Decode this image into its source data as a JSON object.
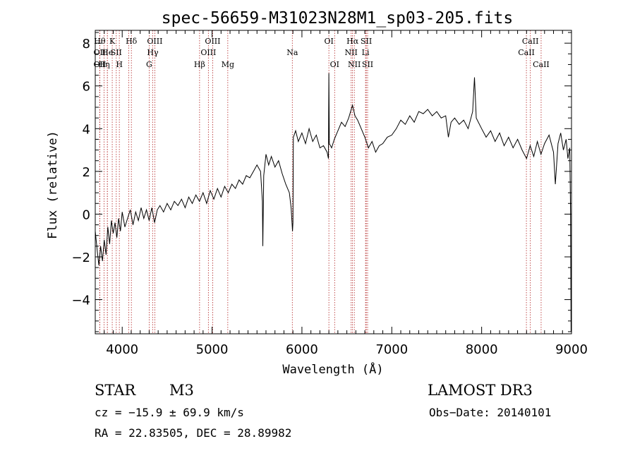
{
  "chart_data": {
    "type": "line",
    "title": "spec-56659-M31023N28M1_sp03-205.fits",
    "xlabel": "Wavelength (Å)",
    "ylabel": "Flux (relative)",
    "xlim": [
      3700,
      9000
    ],
    "ylim": [
      -5.6,
      8.6
    ],
    "x_ticks": [
      4000,
      5000,
      6000,
      7000,
      8000,
      9000
    ],
    "y_ticks": [
      -4,
      -2,
      0,
      2,
      4,
      6,
      8
    ],
    "x_tick_labels": [
      "4000",
      "5000",
      "6000",
      "7000",
      "8000",
      "9000"
    ],
    "y_tick_labels": [
      "−4",
      "−2",
      "0",
      "2",
      "4",
      "6",
      "8"
    ],
    "grid": false,
    "line_color": "#000000",
    "marker_color": "#b22222",
    "series_points": [
      [
        3700,
        -0.8
      ],
      [
        3720,
        -1.6
      ],
      [
        3740,
        -2.4
      ],
      [
        3760,
        -1.5
      ],
      [
        3780,
        -2.2
      ],
      [
        3800,
        -1.2
      ],
      [
        3820,
        -1.9
      ],
      [
        3840,
        -0.6
      ],
      [
        3860,
        -1.4
      ],
      [
        3880,
        -0.3
      ],
      [
        3900,
        -0.9
      ],
      [
        3920,
        -0.4
      ],
      [
        3940,
        -1.1
      ],
      [
        3960,
        -0.2
      ],
      [
        3980,
        -0.8
      ],
      [
        4000,
        0.1
      ],
      [
        4030,
        -0.6
      ],
      [
        4060,
        -0.2
      ],
      [
        4090,
        0.2
      ],
      [
        4120,
        -0.5
      ],
      [
        4150,
        0.1
      ],
      [
        4180,
        -0.3
      ],
      [
        4210,
        0.3
      ],
      [
        4240,
        -0.2
      ],
      [
        4270,
        0.2
      ],
      [
        4300,
        -0.3
      ],
      [
        4330,
        0.3
      ],
      [
        4360,
        -0.4
      ],
      [
        4390,
        0.2
      ],
      [
        4420,
        0.4
      ],
      [
        4460,
        0.1
      ],
      [
        4500,
        0.5
      ],
      [
        4540,
        0.2
      ],
      [
        4580,
        0.6
      ],
      [
        4620,
        0.4
      ],
      [
        4660,
        0.7
      ],
      [
        4700,
        0.3
      ],
      [
        4740,
        0.8
      ],
      [
        4780,
        0.5
      ],
      [
        4820,
        0.9
      ],
      [
        4860,
        0.6
      ],
      [
        4900,
        1.0
      ],
      [
        4940,
        0.5
      ],
      [
        4980,
        1.1
      ],
      [
        5020,
        0.7
      ],
      [
        5060,
        1.2
      ],
      [
        5100,
        0.8
      ],
      [
        5140,
        1.3
      ],
      [
        5180,
        1.0
      ],
      [
        5220,
        1.4
      ],
      [
        5260,
        1.2
      ],
      [
        5300,
        1.6
      ],
      [
        5340,
        1.4
      ],
      [
        5380,
        1.8
      ],
      [
        5420,
        1.7
      ],
      [
        5460,
        2.0
      ],
      [
        5500,
        2.3
      ],
      [
        5540,
        2.0
      ],
      [
        5560,
        0.6
      ],
      [
        5565,
        -1.5
      ],
      [
        5575,
        1.8
      ],
      [
        5600,
        2.8
      ],
      [
        5630,
        2.3
      ],
      [
        5660,
        2.7
      ],
      [
        5700,
        2.2
      ],
      [
        5740,
        2.5
      ],
      [
        5780,
        1.9
      ],
      [
        5820,
        1.4
      ],
      [
        5860,
        1.0
      ],
      [
        5880,
        0.3
      ],
      [
        5895,
        -0.8
      ],
      [
        5900,
        -0.4
      ],
      [
        5905,
        3.6
      ],
      [
        5930,
        3.9
      ],
      [
        5960,
        3.4
      ],
      [
        6000,
        3.8
      ],
      [
        6040,
        3.3
      ],
      [
        6080,
        4.0
      ],
      [
        6120,
        3.4
      ],
      [
        6160,
        3.7
      ],
      [
        6200,
        3.1
      ],
      [
        6240,
        3.2
      ],
      [
        6280,
        2.9
      ],
      [
        6295,
        2.6
      ],
      [
        6300,
        6.6
      ],
      [
        6305,
        3.3
      ],
      [
        6330,
        3.1
      ],
      [
        6360,
        3.5
      ],
      [
        6400,
        3.9
      ],
      [
        6440,
        4.3
      ],
      [
        6480,
        4.1
      ],
      [
        6520,
        4.5
      ],
      [
        6563,
        5.1
      ],
      [
        6590,
        4.6
      ],
      [
        6620,
        4.4
      ],
      [
        6660,
        4.0
      ],
      [
        6700,
        3.6
      ],
      [
        6740,
        3.1
      ],
      [
        6780,
        3.4
      ],
      [
        6820,
        2.9
      ],
      [
        6860,
        3.2
      ],
      [
        6900,
        3.3
      ],
      [
        6950,
        3.6
      ],
      [
        7000,
        3.7
      ],
      [
        7050,
        4.0
      ],
      [
        7100,
        4.4
      ],
      [
        7150,
        4.2
      ],
      [
        7200,
        4.6
      ],
      [
        7250,
        4.3
      ],
      [
        7300,
        4.8
      ],
      [
        7350,
        4.7
      ],
      [
        7400,
        4.9
      ],
      [
        7450,
        4.6
      ],
      [
        7500,
        4.8
      ],
      [
        7550,
        4.5
      ],
      [
        7600,
        4.6
      ],
      [
        7630,
        3.6
      ],
      [
        7660,
        4.3
      ],
      [
        7700,
        4.5
      ],
      [
        7750,
        4.2
      ],
      [
        7800,
        4.4
      ],
      [
        7850,
        4.0
      ],
      [
        7900,
        4.8
      ],
      [
        7920,
        6.4
      ],
      [
        7940,
        4.5
      ],
      [
        8000,
        4.0
      ],
      [
        8050,
        3.6
      ],
      [
        8100,
        3.9
      ],
      [
        8150,
        3.4
      ],
      [
        8200,
        3.8
      ],
      [
        8250,
        3.2
      ],
      [
        8300,
        3.6
      ],
      [
        8350,
        3.1
      ],
      [
        8400,
        3.5
      ],
      [
        8450,
        3.0
      ],
      [
        8500,
        2.6
      ],
      [
        8540,
        3.2
      ],
      [
        8580,
        2.7
      ],
      [
        8620,
        3.4
      ],
      [
        8660,
        2.8
      ],
      [
        8700,
        3.3
      ],
      [
        8750,
        3.7
      ],
      [
        8800,
        2.9
      ],
      [
        8820,
        1.4
      ],
      [
        8850,
        3.3
      ],
      [
        8880,
        3.8
      ],
      [
        8910,
        3.0
      ],
      [
        8940,
        3.5
      ],
      [
        8960,
        2.6
      ],
      [
        8980,
        3.1
      ],
      [
        8990,
        0.0
      ],
      [
        8995,
        -5.5
      ]
    ],
    "line_markers": [
      {
        "wl": 3750,
        "row": 1,
        "label": "Hθ"
      },
      {
        "wl": 3750,
        "row": 2,
        "label": "OII"
      },
      {
        "wl": 3750,
        "row": 3,
        "label": "OII"
      },
      {
        "wl": 3798,
        "row": 3,
        "label": "Hη"
      },
      {
        "wl": 3835,
        "row": 1,
        "label": ""
      },
      {
        "wl": 3835,
        "row": 2,
        "label": "He"
      },
      {
        "wl": 3889,
        "row": 1,
        "label": "K"
      },
      {
        "wl": 3934,
        "row": 2,
        "label": "SII"
      },
      {
        "wl": 3968,
        "row": 3,
        "label": "H"
      },
      {
        "wl": 4102,
        "row": 1,
        "label": "Hδ"
      },
      {
        "wl": 4072,
        "row": 2,
        "label": ""
      },
      {
        "wl": 4300,
        "row": 3,
        "label": "G"
      },
      {
        "wl": 4340,
        "row": 2,
        "label": "Hγ"
      },
      {
        "wl": 4363,
        "row": 1,
        "label": "OIII"
      },
      {
        "wl": 4861,
        "row": 3,
        "label": "Hβ"
      },
      {
        "wl": 4959,
        "row": 2,
        "label": "OIII"
      },
      {
        "wl": 5007,
        "row": 1,
        "label": "OIII"
      },
      {
        "wl": 5175,
        "row": 3,
        "label": "Mg"
      },
      {
        "wl": 5893,
        "row": 2,
        "label": "Na"
      },
      {
        "wl": 6300,
        "row": 1,
        "label": "OI"
      },
      {
        "wl": 6364,
        "row": 3,
        "label": "OI"
      },
      {
        "wl": 6548,
        "row": 2,
        "label": "NII"
      },
      {
        "wl": 6563,
        "row": 1,
        "label": "Hα"
      },
      {
        "wl": 6583,
        "row": 3,
        "label": "NII"
      },
      {
        "wl": 6708,
        "row": 2,
        "label": "Li"
      },
      {
        "wl": 6716,
        "row": 1,
        "label": "SII"
      },
      {
        "wl": 6731,
        "row": 3,
        "label": "SII"
      },
      {
        "wl": 8498,
        "row": 2,
        "label": "CaII"
      },
      {
        "wl": 8542,
        "row": 1,
        "label": "CaII"
      },
      {
        "wl": 8662,
        "row": 3,
        "label": "CaII"
      }
    ]
  },
  "footer": {
    "object_class": "STAR",
    "subclass": "M3",
    "survey": "LAMOST DR3",
    "redshift": "cz = −15.9 ± 69.9 km/s",
    "obs_date": "Obs−Date: 20140101",
    "coords": "RA =  22.83505, DEC =  28.89982"
  }
}
